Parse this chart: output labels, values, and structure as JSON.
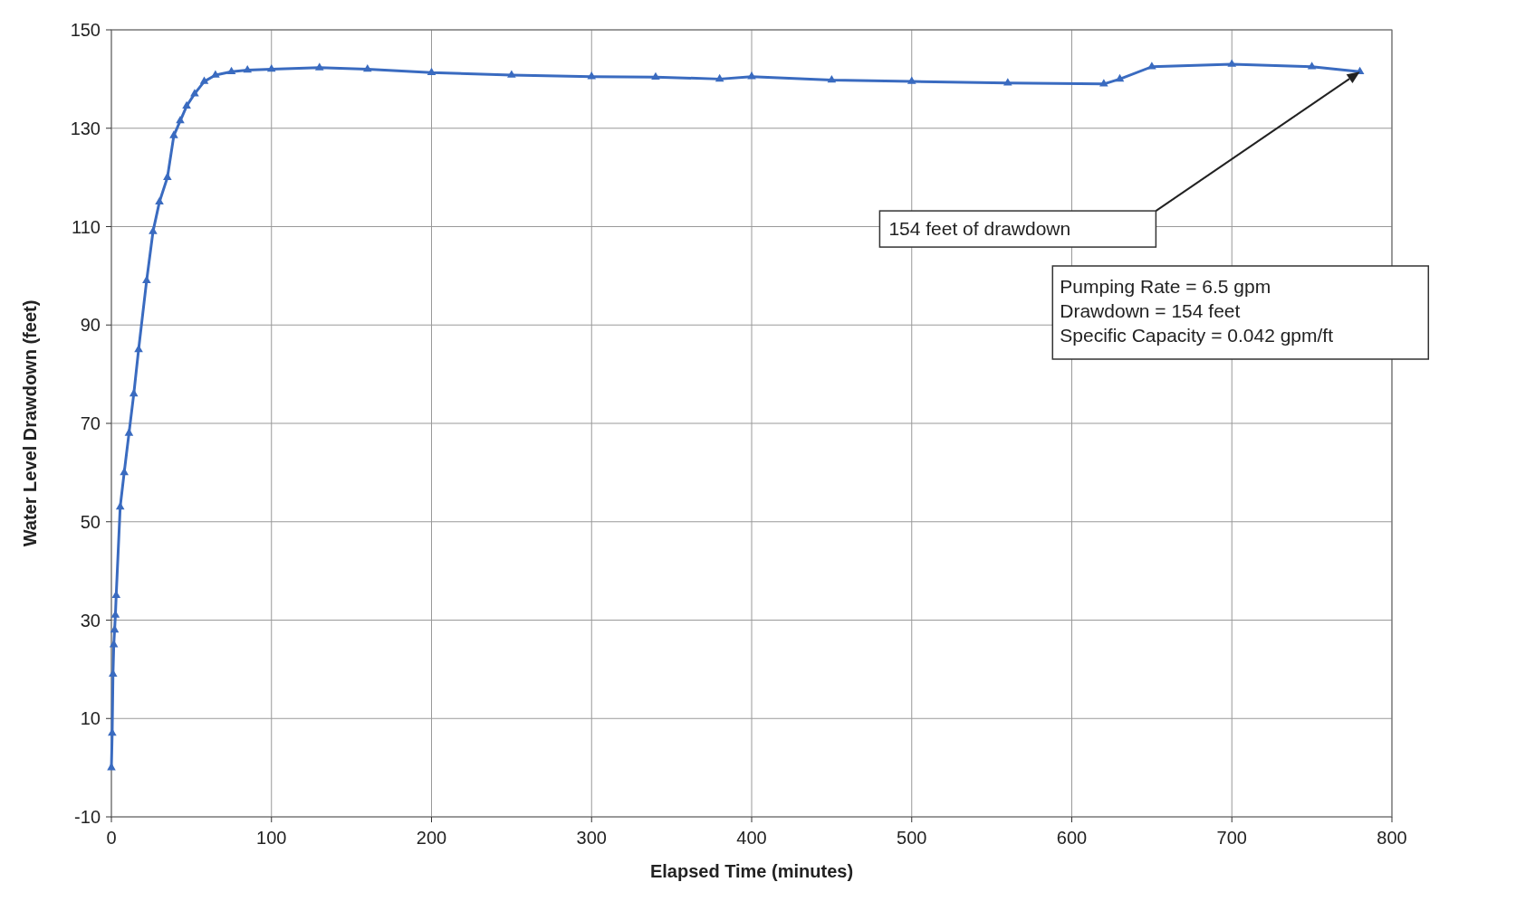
{
  "chart_data": {
    "type": "line",
    "xlabel": "Elapsed Time (minutes)",
    "ylabel": "Water Level Drawdown (feet)",
    "xlim": [
      0,
      800
    ],
    "xticks": [
      0,
      100,
      200,
      300,
      400,
      500,
      600,
      700,
      800
    ],
    "ylim": [
      -10,
      150
    ],
    "yticks": [
      -10,
      10,
      30,
      50,
      70,
      90,
      110,
      130,
      150
    ],
    "grid": true,
    "marker": "triangle",
    "line_style": "solid",
    "series": [
      {
        "color": "#3a6bc0",
        "x": [
          0,
          0.5,
          1,
          1.5,
          2,
          2.5,
          3,
          5.5,
          8,
          11,
          14,
          17,
          22,
          26,
          30,
          35,
          39,
          43,
          47,
          52,
          58,
          65,
          75,
          85,
          100,
          130,
          160,
          200,
          250,
          300,
          340,
          380,
          400,
          450,
          500,
          560,
          620,
          630,
          650,
          700,
          750,
          780
        ],
        "values": [
          0,
          7,
          19,
          25,
          28,
          31,
          35,
          53,
          60,
          68,
          76,
          85,
          99,
          109,
          115,
          120,
          128.5,
          131.5,
          134.5,
          137,
          139.5,
          140.8,
          141.5,
          141.8,
          142,
          142.3,
          142,
          141.3,
          140.8,
          140.5,
          140.4,
          140,
          140.5,
          139.8,
          139.5,
          139.2,
          139,
          140,
          142.5,
          143,
          142.5,
          141.5
        ]
      }
    ],
    "annotations": [
      "154 feet of drawdown",
      "Pumping Rate = 6.5 gpm\nDrawdown = 154 feet\nSpecific Capacity =  0.042 gpm/ft"
    ]
  }
}
